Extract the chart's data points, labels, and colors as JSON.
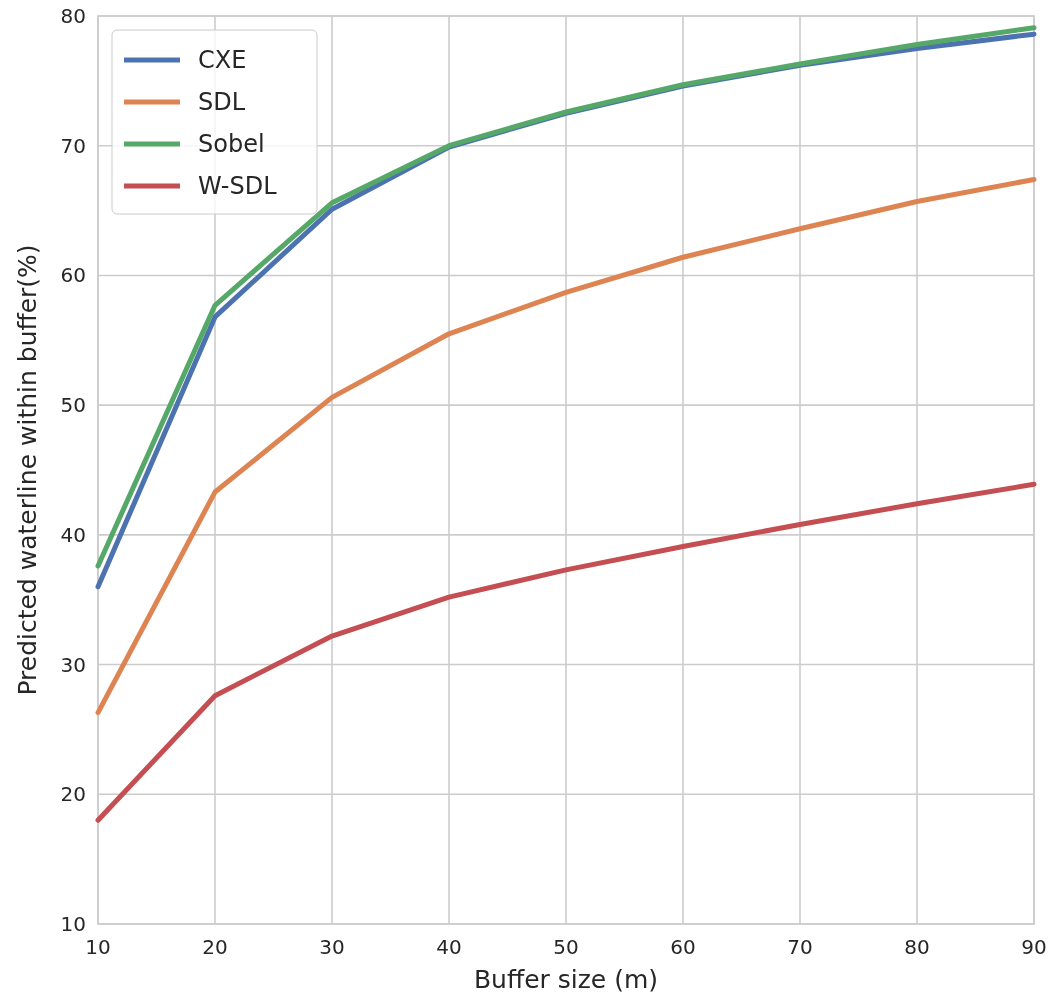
{
  "chart_data": {
    "type": "line",
    "xlabel": "Buffer size (m)",
    "ylabel": "Predicted waterline within buffer(%)",
    "x": [
      10,
      20,
      30,
      40,
      50,
      60,
      70,
      80,
      90
    ],
    "series": [
      {
        "name": "CXE",
        "color": "#4c72b0",
        "values": [
          36.0,
          56.8,
          65.1,
          69.9,
          72.5,
          74.6,
          76.2,
          77.5,
          78.6
        ]
      },
      {
        "name": "SDL",
        "color": "#dd8452",
        "values": [
          26.3,
          43.3,
          50.6,
          55.5,
          58.7,
          61.4,
          63.6,
          65.7,
          67.4
        ]
      },
      {
        "name": "Sobel",
        "color": "#55a868",
        "values": [
          37.6,
          57.7,
          65.6,
          70.0,
          72.6,
          74.7,
          76.3,
          77.8,
          79.1
        ]
      },
      {
        "name": "W-SDL",
        "color": "#c44e52",
        "values": [
          18.0,
          27.6,
          32.2,
          35.2,
          37.3,
          39.1,
          40.8,
          42.4,
          43.9
        ]
      }
    ],
    "xlim": [
      10,
      90
    ],
    "xticks": [
      10,
      20,
      30,
      40,
      50,
      60,
      70,
      80,
      90
    ],
    "ylim": [
      10,
      80
    ],
    "yticks": [
      10,
      20,
      30,
      40,
      50,
      60,
      70,
      80
    ],
    "grid": true,
    "legend": "top left",
    "marker": "none",
    "line_style": "solid"
  }
}
